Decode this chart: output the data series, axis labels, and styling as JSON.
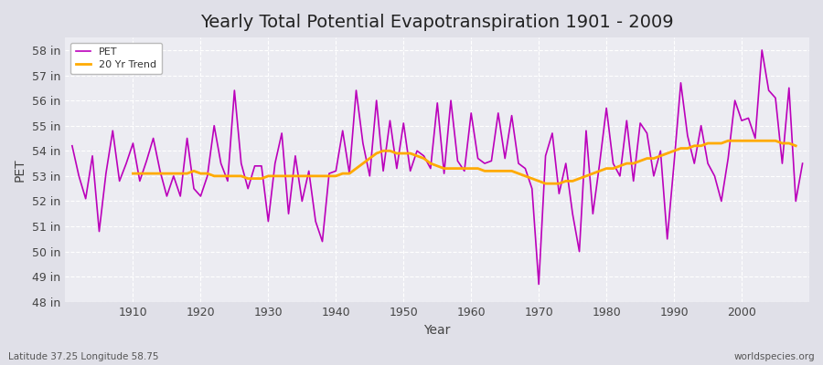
{
  "title": "Yearly Total Potential Evapotranspiration 1901 - 2009",
  "xlabel": "Year",
  "ylabel": "PET",
  "subtitle_left": "Latitude 37.25 Longitude 58.75",
  "subtitle_right": "worldspecies.org",
  "pet_color": "#bb00bb",
  "trend_color": "#ffaa00",
  "fig_bg_color": "#e0e0e8",
  "plot_bg_color": "#ececf2",
  "years": [
    1901,
    1902,
    1903,
    1904,
    1905,
    1906,
    1907,
    1908,
    1909,
    1910,
    1911,
    1912,
    1913,
    1914,
    1915,
    1916,
    1917,
    1918,
    1919,
    1920,
    1921,
    1922,
    1923,
    1924,
    1925,
    1926,
    1927,
    1928,
    1929,
    1930,
    1931,
    1932,
    1933,
    1934,
    1935,
    1936,
    1937,
    1938,
    1939,
    1940,
    1941,
    1942,
    1943,
    1944,
    1945,
    1946,
    1947,
    1948,
    1949,
    1950,
    1951,
    1952,
    1953,
    1954,
    1955,
    1956,
    1957,
    1958,
    1959,
    1960,
    1961,
    1962,
    1963,
    1964,
    1965,
    1966,
    1967,
    1968,
    1969,
    1970,
    1971,
    1972,
    1973,
    1974,
    1975,
    1976,
    1977,
    1978,
    1979,
    1980,
    1981,
    1982,
    1983,
    1984,
    1985,
    1986,
    1987,
    1988,
    1989,
    1990,
    1991,
    1992,
    1993,
    1994,
    1995,
    1996,
    1997,
    1998,
    1999,
    2000,
    2001,
    2002,
    2003,
    2004,
    2005,
    2006,
    2007,
    2008,
    2009
  ],
  "pet_values": [
    54.2,
    53.0,
    52.1,
    53.8,
    50.8,
    53.1,
    54.8,
    52.8,
    53.5,
    54.3,
    52.8,
    53.6,
    54.5,
    53.2,
    52.2,
    53.0,
    52.2,
    54.5,
    52.5,
    52.2,
    53.0,
    55.0,
    53.5,
    52.8,
    56.4,
    53.5,
    52.5,
    53.4,
    53.4,
    51.2,
    53.5,
    54.7,
    51.5,
    53.8,
    52.0,
    53.2,
    51.2,
    50.4,
    53.1,
    53.2,
    54.8,
    53.1,
    56.4,
    54.3,
    53.0,
    56.0,
    53.2,
    55.2,
    53.3,
    55.1,
    53.2,
    54.0,
    53.8,
    53.3,
    55.9,
    53.1,
    56.0,
    53.6,
    53.2,
    55.5,
    53.7,
    53.5,
    53.6,
    55.5,
    53.7,
    55.4,
    53.5,
    53.3,
    52.5,
    48.7,
    53.8,
    54.7,
    52.3,
    53.5,
    51.5,
    50.0,
    54.8,
    51.5,
    53.5,
    55.7,
    53.5,
    53.0,
    55.2,
    52.8,
    55.1,
    54.7,
    53.0,
    54.0,
    50.5,
    53.5,
    56.7,
    54.6,
    53.5,
    55.0,
    53.5,
    53.0,
    52.0,
    53.7,
    56.0,
    55.2,
    55.3,
    54.5,
    58.0,
    56.4,
    56.1,
    53.5,
    56.5,
    52.0,
    53.5
  ],
  "trend_values": [
    null,
    null,
    null,
    null,
    null,
    null,
    null,
    null,
    null,
    53.1,
    53.1,
    53.1,
    53.1,
    53.1,
    53.1,
    53.1,
    53.1,
    53.1,
    53.2,
    53.1,
    53.1,
    53.0,
    53.0,
    53.0,
    53.0,
    53.0,
    52.9,
    52.9,
    52.9,
    53.0,
    53.0,
    53.0,
    53.0,
    53.0,
    53.0,
    53.0,
    53.0,
    53.0,
    53.0,
    53.0,
    53.1,
    53.1,
    53.3,
    53.5,
    53.7,
    53.9,
    54.0,
    54.0,
    53.9,
    53.9,
    53.9,
    53.8,
    53.7,
    53.5,
    53.4,
    53.3,
    53.3,
    53.3,
    53.3,
    53.3,
    53.3,
    53.2,
    53.2,
    53.2,
    53.2,
    53.2,
    53.1,
    53.0,
    52.9,
    52.8,
    52.7,
    52.7,
    52.7,
    52.8,
    52.8,
    52.9,
    53.0,
    53.1,
    53.2,
    53.3,
    53.3,
    53.4,
    53.5,
    53.5,
    53.6,
    53.7,
    53.7,
    53.8,
    53.9,
    54.0,
    54.1,
    54.1,
    54.2,
    54.2,
    54.3,
    54.3,
    54.3,
    54.4,
    54.4,
    54.4,
    54.4,
    54.4,
    54.4,
    54.4,
    54.4,
    54.3,
    54.3,
    54.2
  ],
  "ylim": [
    48,
    58.5
  ],
  "yticks": [
    48,
    49,
    50,
    51,
    52,
    53,
    54,
    55,
    56,
    57,
    58
  ],
  "xticks": [
    1910,
    1920,
    1930,
    1940,
    1950,
    1960,
    1970,
    1980,
    1990,
    2000
  ],
  "xlim": [
    1900,
    2010
  ],
  "title_fontsize": 14,
  "axis_label_fontsize": 10,
  "tick_fontsize": 9
}
